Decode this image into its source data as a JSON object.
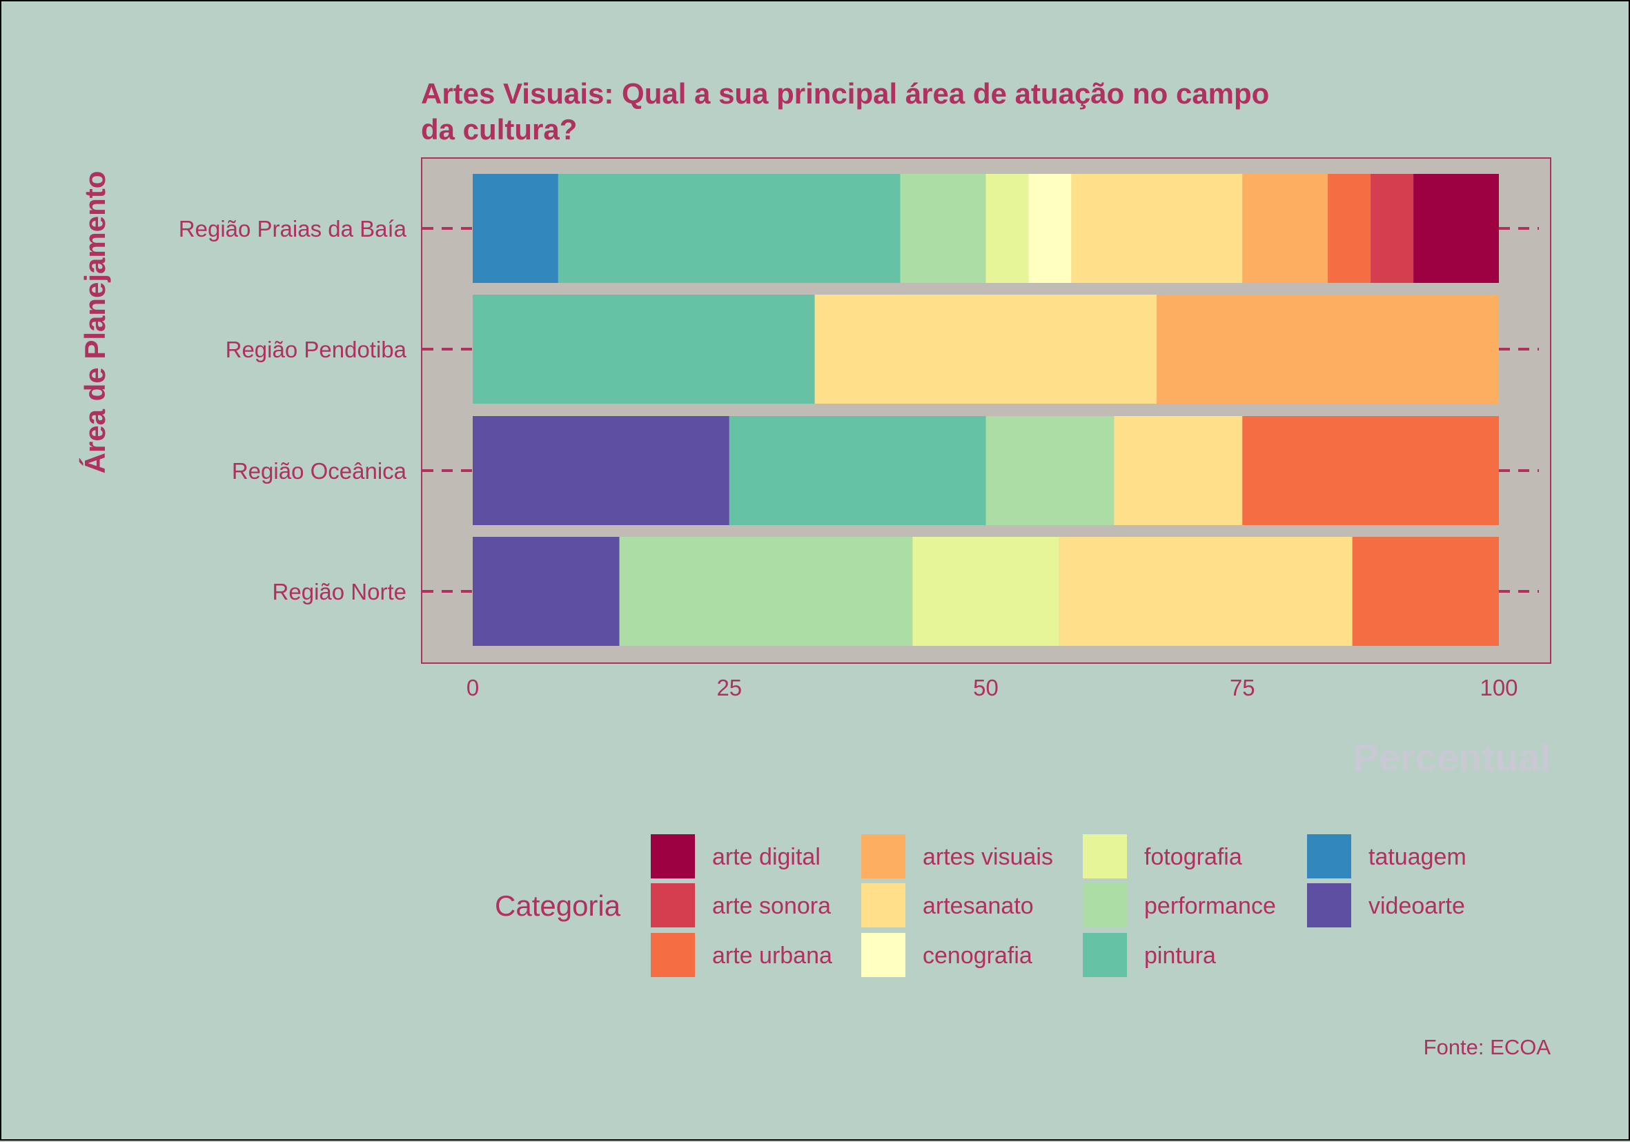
{
  "colors": {
    "background": "#b8d0c5",
    "panel": "#c0bcb5",
    "accent": "#b03060",
    "xlabel_color": "#c9c9d4"
  },
  "chart_data": {
    "type": "bar",
    "orientation": "horizontal",
    "stacked": true,
    "title": "Artes Visuais: Qual a sua principal área de atuação no campo da cultura?",
    "title_lines": [
      "Artes Visuais: Qual a sua principal área de atuação no campo",
      "da cultura?"
    ],
    "xlabel": "Percentual",
    "ylabel": "Área de Planejamento",
    "xlim": [
      0,
      100
    ],
    "x_ticks": [
      "0",
      "25",
      "50",
      "75",
      "100"
    ],
    "grid": false,
    "legend": {
      "title": "Categoria",
      "placement": "bottom",
      "items": [
        {
          "name": "arte digital",
          "color": "#9e0142"
        },
        {
          "name": "arte sonora",
          "color": "#d53e4f"
        },
        {
          "name": "arte urbana",
          "color": "#f46d43"
        },
        {
          "name": "artes visuais",
          "color": "#fdae61"
        },
        {
          "name": "artesanato",
          "color": "#fee08b"
        },
        {
          "name": "cenografia",
          "color": "#ffffbf"
        },
        {
          "name": "fotografia",
          "color": "#e6f598"
        },
        {
          "name": "performance",
          "color": "#abdda4"
        },
        {
          "name": "pintura",
          "color": "#66c2a5"
        },
        {
          "name": "tatuagem",
          "color": "#3288bd"
        },
        {
          "name": "videoarte",
          "color": "#5e4fa2"
        }
      ]
    },
    "categories": [
      "Região Praias da Baía",
      "Região Pendotiba",
      "Região Oceânica",
      "Região Norte"
    ],
    "bars": [
      {
        "category": "Região Praias da Baía",
        "segments": [
          {
            "name": "tatuagem",
            "value": 8.33
          },
          {
            "name": "pintura",
            "value": 33.33
          },
          {
            "name": "performance",
            "value": 8.33
          },
          {
            "name": "fotografia",
            "value": 4.17
          },
          {
            "name": "cenografia",
            "value": 4.17
          },
          {
            "name": "artesanato",
            "value": 16.67
          },
          {
            "name": "artes visuais",
            "value": 8.33
          },
          {
            "name": "arte urbana",
            "value": 4.17
          },
          {
            "name": "arte sonora",
            "value": 4.17
          },
          {
            "name": "arte digital",
            "value": 8.33
          }
        ]
      },
      {
        "category": "Região Pendotiba",
        "segments": [
          {
            "name": "pintura",
            "value": 33.33
          },
          {
            "name": "artesanato",
            "value": 33.33
          },
          {
            "name": "artes visuais",
            "value": 33.34
          }
        ]
      },
      {
        "category": "Região Oceânica",
        "segments": [
          {
            "name": "videoarte",
            "value": 25.0
          },
          {
            "name": "pintura",
            "value": 25.0
          },
          {
            "name": "performance",
            "value": 12.5
          },
          {
            "name": "artesanato",
            "value": 12.5
          },
          {
            "name": "arte urbana",
            "value": 25.0
          }
        ]
      },
      {
        "category": "Região Norte",
        "segments": [
          {
            "name": "videoarte",
            "value": 14.29
          },
          {
            "name": "performance",
            "value": 28.57
          },
          {
            "name": "fotografia",
            "value": 14.29
          },
          {
            "name": "artesanato",
            "value": 28.57
          },
          {
            "name": "arte urbana",
            "value": 14.28
          }
        ]
      }
    ],
    "caption": "Fonte: ECOA"
  }
}
